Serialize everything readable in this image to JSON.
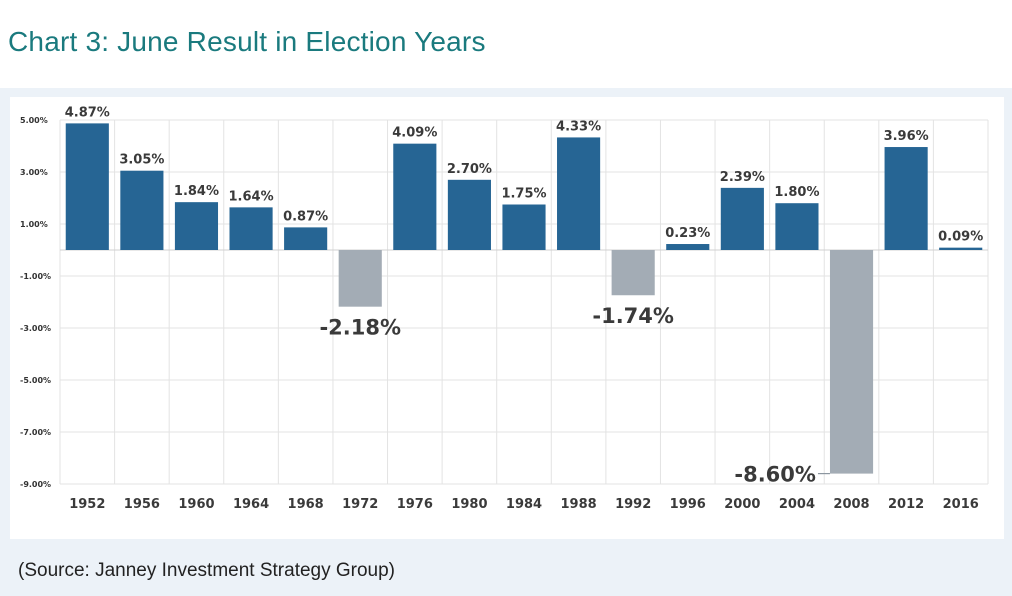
{
  "page": {
    "title": "Chart 3:  June Result in Election Years",
    "source": "(Source: Janney Investment Strategy Group)"
  },
  "colors": {
    "positive": "#266594",
    "negative": "#a3acb5",
    "title": "#1a7a7e",
    "panel": "#ecf2f8"
  },
  "chart_data": {
    "type": "bar",
    "title": "",
    "xlabel": "",
    "ylabel": "",
    "categories": [
      "1952",
      "1956",
      "1960",
      "1964",
      "1968",
      "1972",
      "1976",
      "1980",
      "1984",
      "1988",
      "1992",
      "1996",
      "2000",
      "2004",
      "2008",
      "2012",
      "2016"
    ],
    "values": [
      4.87,
      3.05,
      1.84,
      1.64,
      0.87,
      -2.18,
      4.09,
      2.7,
      1.75,
      4.33,
      -1.74,
      0.23,
      2.39,
      1.8,
      -8.6,
      3.96,
      0.09
    ],
    "data_labels": [
      "4.87%",
      "3.05%",
      "1.84%",
      "1.64%",
      "0.87%",
      "-2.18%",
      "4.09%",
      "2.70%",
      "1.75%",
      "4.33%",
      "-1.74%",
      "0.23%",
      "2.39%",
      "1.80%",
      "-8.60%",
      "3.96%",
      "0.09%"
    ],
    "ylim": [
      -9,
      5
    ],
    "yticks": [
      5,
      3,
      1,
      -1,
      -3,
      -5,
      -7,
      -9
    ],
    "ytick_labels": [
      "5.00%",
      "3.00%",
      "1.00%",
      "-1.00%",
      "-3.00%",
      "-5.00%",
      "-7.00%",
      "-9.00%"
    ],
    "grid": true,
    "legend": "none"
  }
}
